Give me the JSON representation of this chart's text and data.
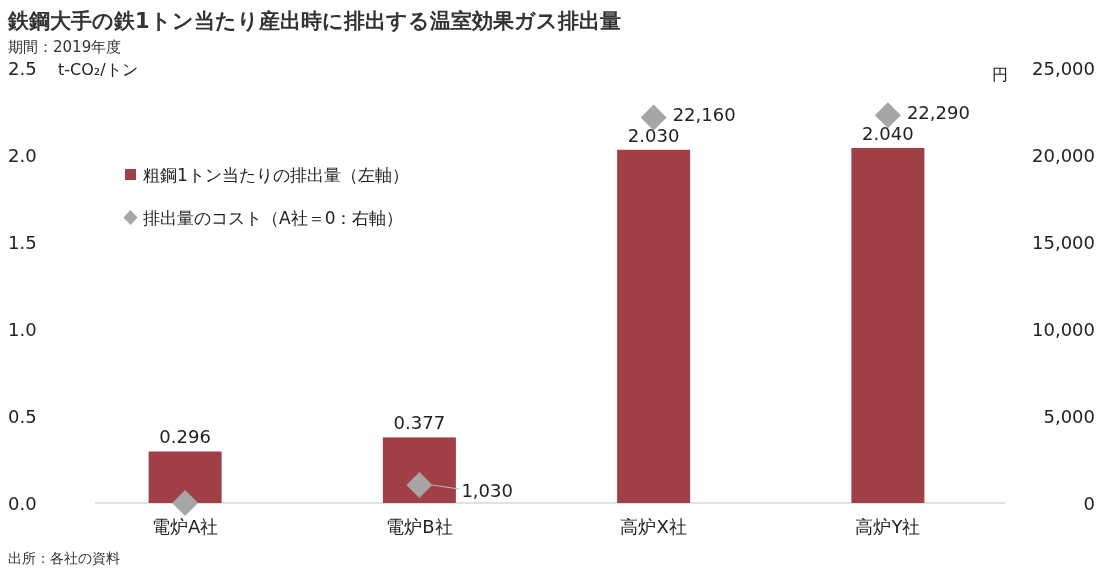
{
  "chart_data": {
    "type": "bar",
    "title": "鉄鋼大手の鉄1トン当たり産出時に排出する温室効果ガス排出量",
    "subtitle": "期間：2019年度",
    "ylabel": "t-CO₂/トン",
    "y2label": "円",
    "categories": [
      "電炉A社",
      "電炉B社",
      "高炉X社",
      "高炉Y社"
    ],
    "series": [
      {
        "name": "粗鋼1トン当たりの排出量（左軸）",
        "color": "#a03f46",
        "values": [
          0.296,
          0.377,
          2.03,
          2.04
        ],
        "value_labels": [
          "0.296",
          "0.377",
          "2.030",
          "2.040"
        ]
      },
      {
        "name": "排出量のコスト（A社＝0：右軸）",
        "type": "scatter",
        "axis": "y2",
        "marker": "diamond",
        "color": "#a6a6a6",
        "values": [
          0,
          1030,
          22160,
          22290
        ],
        "value_labels": [
          null,
          "1,030",
          "22,160",
          "22,290"
        ]
      }
    ],
    "ylim": [
      0,
      2.5
    ],
    "yticks": [
      {
        "value": 0,
        "label": "0.0"
      },
      {
        "value": 0.5,
        "label": "0.5"
      },
      {
        "value": 1,
        "label": "1.0"
      },
      {
        "value": 1.5,
        "label": "1.5"
      },
      {
        "value": 2,
        "label": "2.0"
      },
      {
        "value": 2.5,
        "label": "2.5"
      }
    ],
    "y2lim": [
      0,
      25000
    ],
    "y2ticks": [
      {
        "value": 0,
        "label": "0"
      },
      {
        "value": 5000,
        "label": "5,000"
      },
      {
        "value": 10000,
        "label": "10,000"
      },
      {
        "value": 15000,
        "label": "15,000"
      },
      {
        "value": 20000,
        "label": "20,000"
      },
      {
        "value": 25000,
        "label": "25,000"
      }
    ],
    "legend": "top left",
    "grid": false,
    "annotations": [
      "出所：各社の資料"
    ]
  }
}
